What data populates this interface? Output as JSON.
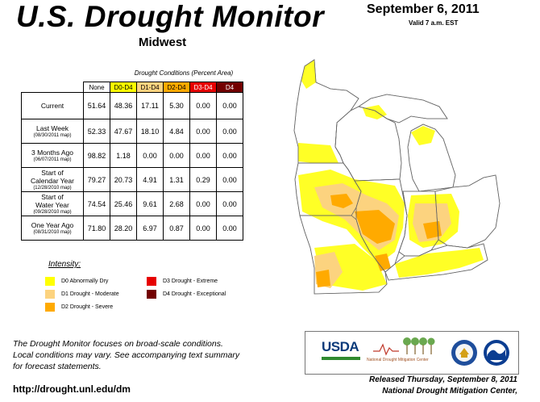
{
  "header": {
    "title": "U.S. Drought Monitor",
    "region": "Midwest",
    "date": "September 6, 2011",
    "valid": "Valid 7 a.m. EST"
  },
  "table": {
    "caption": "Drought Conditions (Percent Area)",
    "columns": [
      "None",
      "D0-D4",
      "D1-D4",
      "D2-D4",
      "D3-D4",
      "D4"
    ],
    "rows": [
      {
        "label": "Current",
        "sub": "",
        "values": [
          "51.64",
          "48.36",
          "17.11",
          "5.30",
          "0.00",
          "0.00"
        ]
      },
      {
        "label": "Last Week",
        "sub": "(08/30/2011 map)",
        "values": [
          "52.33",
          "47.67",
          "18.10",
          "4.84",
          "0.00",
          "0.00"
        ]
      },
      {
        "label": "3 Months Ago",
        "sub": "(06/07/2011 map)",
        "values": [
          "98.82",
          "1.18",
          "0.00",
          "0.00",
          "0.00",
          "0.00"
        ]
      },
      {
        "label1": "Start of",
        "label2": "Calendar Year",
        "sub": "(12/28/2010 map)",
        "values": [
          "79.27",
          "20.73",
          "4.91",
          "1.31",
          "0.29",
          "0.00"
        ]
      },
      {
        "label1": "Start of",
        "label2": "Water Year",
        "sub": "(09/28/2010 map)",
        "values": [
          "74.54",
          "25.46",
          "9.61",
          "2.68",
          "0.00",
          "0.00"
        ]
      },
      {
        "label": "One Year Ago",
        "sub": "(08/31/2010 map)",
        "values": [
          "71.80",
          "28.20",
          "6.97",
          "0.87",
          "0.00",
          "0.00"
        ]
      }
    ]
  },
  "legend": {
    "title": "Intensity:",
    "items": [
      {
        "label": "D0 Abnormally Dry",
        "color": "#ffff00"
      },
      {
        "label": "D1 Drought - Moderate",
        "color": "#fcd37f"
      },
      {
        "label": "D2 Drought - Severe",
        "color": "#ffaa00"
      },
      {
        "label": "D3 Drought - Extreme",
        "color": "#e60000"
      },
      {
        "label": "D4 Drought - Exceptional",
        "color": "#730000"
      }
    ]
  },
  "footer": {
    "note_line1": "The Drought Monitor focuses on broad-scale conditions.",
    "note_line2": "Local conditions may vary. See accompanying text summary",
    "note_line3": "for forecast statements.",
    "url": "http://drought.unl.edu/dm",
    "released": "Released Thursday, September 8, 2011",
    "author": "National Drought Mitigation Center,"
  },
  "logos": {
    "usda": "USDA",
    "ndmc": "National Drought Mitigation Center",
    "doc_icon": "commerce-seal-icon",
    "noaa_icon": "noaa-logo-icon"
  }
}
